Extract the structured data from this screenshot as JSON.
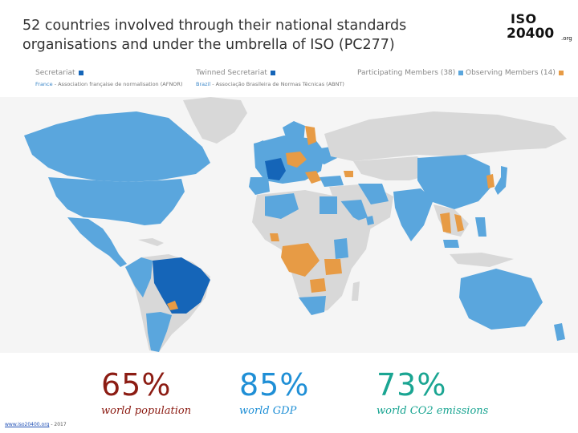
{
  "title": "52 countries involved through their national standards organisations and under the umbrella of ISO (PC277)",
  "logo": {
    "top": "ISO",
    "number": "20400",
    "suffix": ".org"
  },
  "legend": {
    "secretariat": {
      "label": "Secretariat",
      "country": "France",
      "body": "- Association française de normalisation (AFNOR)",
      "color": "#1565b8"
    },
    "twinned": {
      "label": "Twinned Secretariat",
      "country": "Brazil",
      "body": "- Associação Brasileira de Normas Técnicas (ABNT)",
      "color": "#1565b8"
    },
    "participating": {
      "label": "Participating Members (38)",
      "color": "#5aa6dd"
    },
    "observing": {
      "label": "Observing Members (14)",
      "color": "#e79b45"
    }
  },
  "map": {
    "land_color": "#d8d8d8",
    "participating_color": "#5aa6dd",
    "secretariat_color": "#1565b8",
    "observing_color": "#e79b45"
  },
  "stats": [
    {
      "value": "65%",
      "label": "world population",
      "color": "#8c1c13"
    },
    {
      "value": "85%",
      "label": "world GDP",
      "color": "#1f8fd6"
    },
    {
      "value": "73%",
      "label": "world CO2 emissions",
      "color": "#1aa592"
    }
  ],
  "footer": {
    "link": "www.iso20400.org",
    "year": "- 2017"
  }
}
